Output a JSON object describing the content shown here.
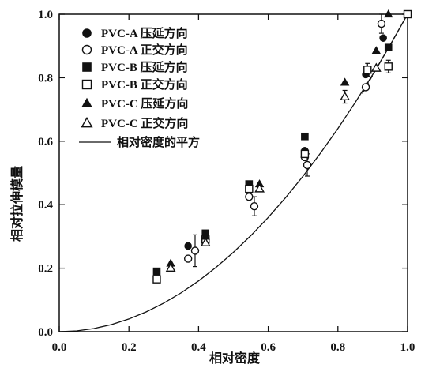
{
  "chart_data": {
    "type": "scatter",
    "xlabel": "相对密度",
    "ylabel": "相对拉伸模量",
    "xlim": [
      0.0,
      1.0
    ],
    "ylim": [
      0.0,
      1.0
    ],
    "xticks": [
      "0.0",
      "0.2",
      "0.4",
      "0.6",
      "0.8",
      "1.0"
    ],
    "yticks": [
      "0.0",
      "0.2",
      "0.4",
      "0.6",
      "0.8",
      "1.0"
    ],
    "grid": false,
    "legend_position": "top-left",
    "series": [
      {
        "name": "PVC-A 压延方向",
        "marker": "filled-circle",
        "points": [
          {
            "x": 0.37,
            "y": 0.27
          },
          {
            "x": 0.545,
            "y": 0.445
          },
          {
            "x": 0.705,
            "y": 0.57
          },
          {
            "x": 0.88,
            "y": 0.81
          },
          {
            "x": 0.93,
            "y": 0.925
          }
        ]
      },
      {
        "name": "PVC-A 正交方向",
        "marker": "open-circle",
        "points": [
          {
            "x": 0.37,
            "y": 0.23
          },
          {
            "x": 0.39,
            "y": 0.255,
            "err": 0.05
          },
          {
            "x": 0.545,
            "y": 0.425
          },
          {
            "x": 0.56,
            "y": 0.395,
            "err": 0.03
          },
          {
            "x": 0.705,
            "y": 0.55
          },
          {
            "x": 0.712,
            "y": 0.525,
            "err": 0.035
          },
          {
            "x": 0.88,
            "y": 0.77
          },
          {
            "x": 0.925,
            "y": 0.97,
            "err": 0.03
          }
        ]
      },
      {
        "name": "PVC-B 压延方向",
        "marker": "filled-square",
        "points": [
          {
            "x": 0.28,
            "y": 0.19
          },
          {
            "x": 0.42,
            "y": 0.31
          },
          {
            "x": 0.545,
            "y": 0.465
          },
          {
            "x": 0.705,
            "y": 0.615
          },
          {
            "x": 0.945,
            "y": 0.895
          },
          {
            "x": 1.0,
            "y": 1.0
          }
        ]
      },
      {
        "name": "PVC-B 正交方向",
        "marker": "open-square",
        "points": [
          {
            "x": 0.28,
            "y": 0.165
          },
          {
            "x": 0.42,
            "y": 0.29
          },
          {
            "x": 0.545,
            "y": 0.45
          },
          {
            "x": 0.705,
            "y": 0.56
          },
          {
            "x": 0.885,
            "y": 0.825,
            "err": 0.02
          },
          {
            "x": 0.945,
            "y": 0.835,
            "err": 0.02
          },
          {
            "x": 1.0,
            "y": 1.0
          }
        ]
      },
      {
        "name": "PVC-C 压延方向",
        "marker": "filled-triangle",
        "points": [
          {
            "x": 0.32,
            "y": 0.215
          },
          {
            "x": 0.42,
            "y": 0.3
          },
          {
            "x": 0.575,
            "y": 0.465
          },
          {
            "x": 0.82,
            "y": 0.785
          },
          {
            "x": 0.91,
            "y": 0.885
          },
          {
            "x": 0.945,
            "y": 1.0
          }
        ]
      },
      {
        "name": "PVC-C 正交方向",
        "marker": "open-triangle",
        "points": [
          {
            "x": 0.32,
            "y": 0.2
          },
          {
            "x": 0.42,
            "y": 0.28
          },
          {
            "x": 0.575,
            "y": 0.45
          },
          {
            "x": 0.82,
            "y": 0.74,
            "err": 0.02
          },
          {
            "x": 0.91,
            "y": 0.83
          }
        ]
      }
    ],
    "curve": {
      "name": "相对密度的平方",
      "x": [
        0,
        0.05,
        0.1,
        0.15,
        0.2,
        0.25,
        0.3,
        0.35,
        0.4,
        0.45,
        0.5,
        0.55,
        0.6,
        0.65,
        0.7,
        0.75,
        0.8,
        0.85,
        0.9,
        0.95,
        1.0
      ],
      "y": [
        0,
        0.0025,
        0.01,
        0.0225,
        0.04,
        0.0625,
        0.09,
        0.1225,
        0.16,
        0.2025,
        0.25,
        0.3025,
        0.36,
        0.4225,
        0.49,
        0.5625,
        0.64,
        0.7225,
        0.81,
        0.9025,
        1.0
      ]
    },
    "dashed_line": {
      "x": [
        0.87,
        1.0
      ],
      "y": [
        0.75,
        1.0
      ]
    }
  }
}
